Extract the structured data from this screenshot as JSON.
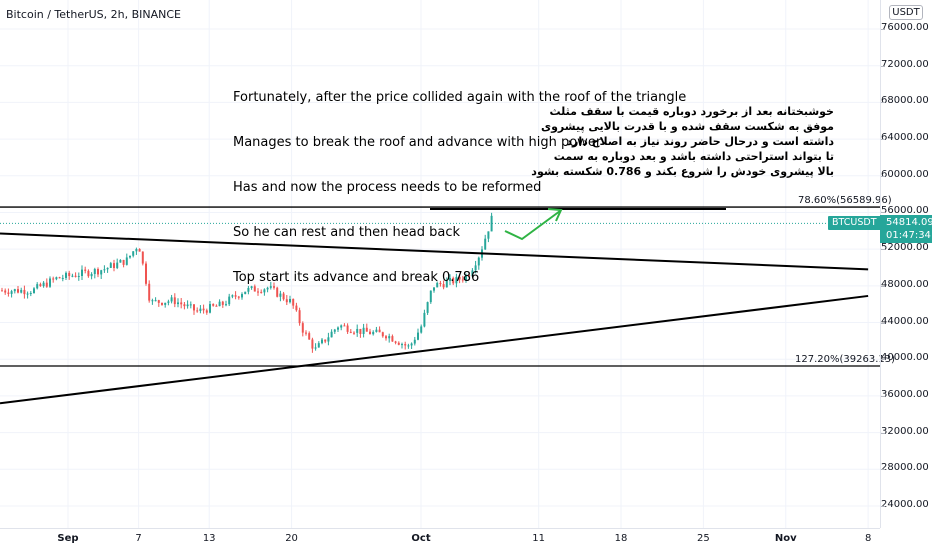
{
  "header": {
    "title": "Bitcoin / TetherUS, 2h, BINANCE"
  },
  "currency_label": "USDT",
  "annotation_en": [
    "Fortunately, after the price collided again with the roof of the triangle",
    "Manages to break the roof and advance with high power",
    "Has and now the process needs to be reformed",
    "So he can rest and then head back",
    "Top start its advance and break 0.786"
  ],
  "annotation_fa": [
    "خوشبختانه بعد از برخورد دوباره قیمت با سقف مثلث",
    "موفق به شکست سقف شده و با قدرت بالایی پیشروی",
    "داشته است و درحال حاضر روند نیاز به اصلاح دارد",
    "تا بتواند استراحتی داشته باشد و بعد دوباره به سمت",
    "بالا پیشروی خودش را شروع بکند و 0.786 شکسته بشود"
  ],
  "levels": [
    {
      "label": "78.60%(56589.96)",
      "price": 56589.96
    },
    {
      "label": "127.20%(39263.13)",
      "price": 39263.13
    }
  ],
  "symbol_badge": "BTCUSDT",
  "last_price": "54814.09",
  "countdown": "01:47:34",
  "colors": {
    "up": "#26a69a",
    "down": "#ef5350",
    "arrow": "#2fb344",
    "line": "#000000",
    "grid": "#f0f3fa"
  },
  "chart_data": {
    "type": "line",
    "title": "Bitcoin / TetherUS, 2h, BINANCE",
    "xlabel": "",
    "ylabel": "",
    "y_tick_labels": [
      "24000.00",
      "28000.00",
      "32000.00",
      "36000.00",
      "40000.00",
      "44000.00",
      "48000.00",
      "52000.00",
      "56000.00",
      "60000.00",
      "64000.00",
      "68000.00",
      "72000.00",
      "76000.00"
    ],
    "x_tick_labels": [
      "Sep",
      "7",
      "13",
      "20",
      "Oct",
      "11",
      "18",
      "25",
      "Nov",
      "8"
    ],
    "ylim": [
      22000,
      78000
    ],
    "x": [
      "Aug 29",
      "Aug 31",
      "Sep 2",
      "Sep 4",
      "Sep 6",
      "Sep 7",
      "Sep 8",
      "Sep 10",
      "Sep 12",
      "Sep 14",
      "Sep 16",
      "Sep 18",
      "Sep 20",
      "Sep 21",
      "Sep 22",
      "Sep 24",
      "Sep 26",
      "Sep 28",
      "Sep 30",
      "Oct 1",
      "Oct 2",
      "Oct 4",
      "Oct 5",
      "Oct 6",
      "Oct 7"
    ],
    "series": [
      {
        "values": [
          47500,
          48800,
          49300,
          49800,
          50800,
          52600,
          46200,
          46400,
          45200,
          45900,
          47500,
          47800,
          46200,
          43100,
          41000,
          43700,
          43000,
          42700,
          41300,
          43500,
          48000,
          48600,
          49200,
          51500,
          55300
        ]
      }
    ],
    "trendlines": [
      {
        "from": [
          "Aug 29",
          53700
        ],
        "to": [
          "Nov 8",
          49800
        ]
      },
      {
        "from": [
          "Aug 29",
          35200
        ],
        "to": [
          "Nov 8",
          46900
        ]
      }
    ]
  }
}
